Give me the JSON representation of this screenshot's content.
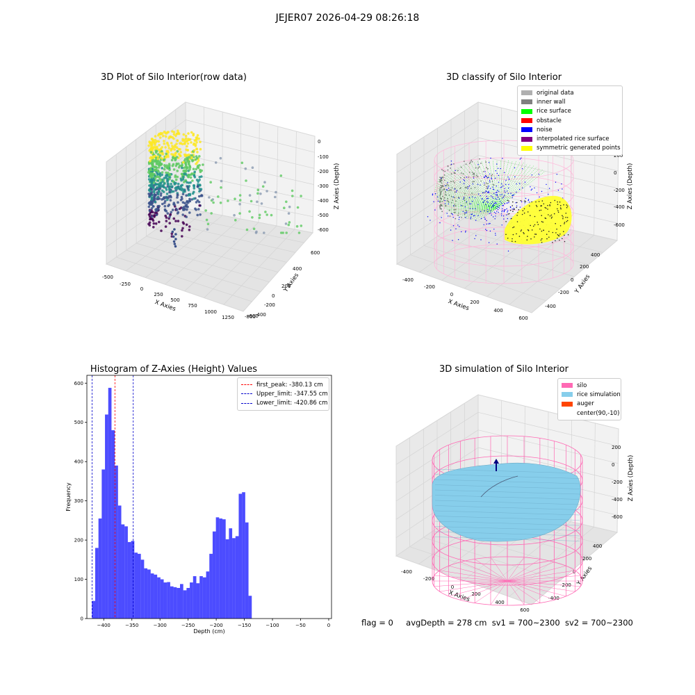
{
  "suptitle": "JEJER07 2026-04-29 08:26:18",
  "panels": {
    "raw": {
      "title": "3D Plot of Silo Interior(row data)",
      "x_label": "X Axies",
      "y_label": "Y Axies",
      "z_label": "Z Axies (Depth)",
      "x_ticks": [
        "-500",
        "-250",
        "0",
        "250",
        "500",
        "750",
        "1000",
        "1250"
      ],
      "y_ticks": [
        "600",
        "400",
        "200",
        "0",
        "-200",
        "-400",
        "-600",
        "-800"
      ],
      "z_ticks": [
        "0",
        "-100",
        "-200",
        "-300",
        "-400",
        "-500",
        "-600"
      ]
    },
    "classify": {
      "title": "3D classify of Silo Interior",
      "x_label": "X Axies",
      "y_label": "Y Axies",
      "z_label": "Z Axies (Depth)",
      "x_ticks": [
        "-400",
        "-200",
        "0",
        "200",
        "400",
        "600"
      ],
      "y_ticks": [
        "400",
        "200",
        "0",
        "-200",
        "-400"
      ],
      "z_ticks": [
        "200",
        "0",
        "-200",
        "-400",
        "-600"
      ],
      "legend": [
        {
          "label": "original data",
          "color": "#b0b0b0"
        },
        {
          "label": "inner wall",
          "color": "#808080"
        },
        {
          "label": "rice surface",
          "color": "#00ff00"
        },
        {
          "label": "obstacle",
          "color": "#ff0000"
        },
        {
          "label": "noise",
          "color": "#0000ff"
        },
        {
          "label": "interpolated rice surface",
          "color": "#800080"
        },
        {
          "label": "symmetric generated points",
          "color": "#ffff00"
        }
      ]
    },
    "simulation": {
      "title": "3D simulation of Silo Interior",
      "x_label": "X Axies",
      "y_label": "Y Axies",
      "z_label": "Z Axies (Depth)",
      "x_ticks": [
        "-400",
        "-200",
        "0",
        "200",
        "400",
        "600"
      ],
      "y_ticks": [
        "400",
        "200",
        "0",
        "-200",
        "-400"
      ],
      "z_ticks": [
        "200",
        "0",
        "-200",
        "-400",
        "-600"
      ],
      "legend": [
        {
          "label": "silo",
          "color": "#ff69b4"
        },
        {
          "label": "rice simulation",
          "color": "#87ceeb"
        },
        {
          "label": "auger",
          "color": "#ff4500"
        },
        {
          "label": "center(90,-10)",
          "color": "#ffffff"
        }
      ]
    }
  },
  "chart_data": [
    {
      "type": "bar",
      "title": "Histogram of Z-Axies (Height) Values",
      "xlabel": "Depth (cm)",
      "ylabel": "Frequency",
      "xlim": [
        -430,
        5
      ],
      "ylim": [
        0,
        620
      ],
      "x_ticks": [
        -400,
        -350,
        -300,
        -250,
        -200,
        -150,
        -100,
        -50,
        0
      ],
      "y_ticks": [
        0,
        100,
        200,
        300,
        400,
        500,
        600
      ],
      "bar_color": "#0000ff",
      "bin_start": -421,
      "bin_width": 5.8,
      "values": [
        45,
        180,
        255,
        380,
        520,
        588,
        480,
        390,
        288,
        240,
        235,
        195,
        198,
        168,
        165,
        150,
        128,
        125,
        115,
        112,
        105,
        100,
        92,
        93,
        82,
        80,
        78,
        88,
        72,
        78,
        92,
        108,
        90,
        108,
        105,
        120,
        165,
        222,
        258,
        255,
        253,
        202,
        230,
        205,
        210,
        318,
        322,
        245,
        58
      ],
      "lines": [
        {
          "label": "first_peak: -380.13 cm",
          "x": -380.13,
          "color": "#ff0000"
        },
        {
          "label": "Upper_limit: -347.55 cm",
          "x": -347.55,
          "color": "#0000cc"
        },
        {
          "label": "Lower_limit: -420.86 cm",
          "x": -420.86,
          "color": "#0000cc"
        }
      ],
      "legend_position": "top-right"
    }
  ],
  "footer": {
    "flag": "flag = 0",
    "avg": "avgDepth = 278 cm",
    "sv1": "sv1 = 700~2300",
    "sv2": "sv2 = 700~2300"
  }
}
